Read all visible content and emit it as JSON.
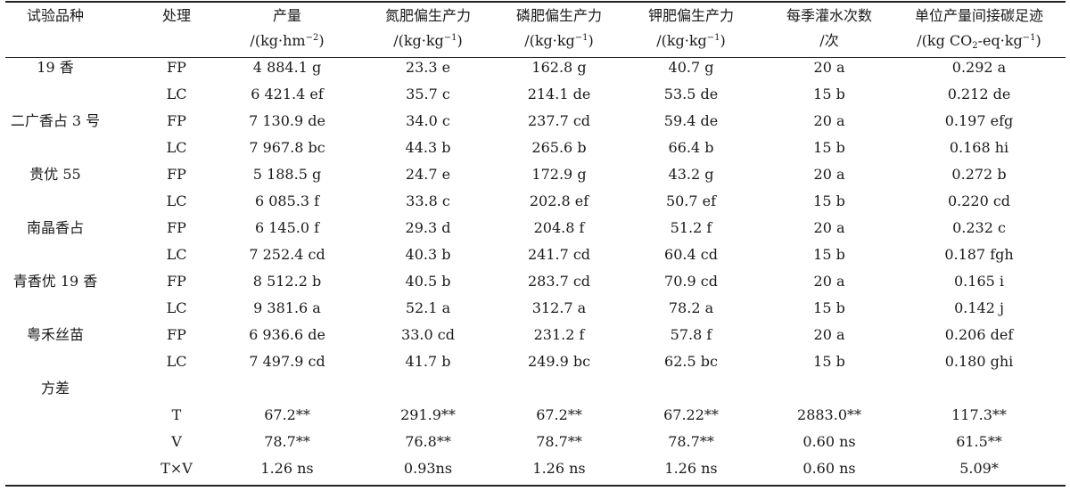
{
  "table": {
    "headers": [
      {
        "line1": "试验品种",
        "line2": ""
      },
      {
        "line1": "处理",
        "line2": ""
      },
      {
        "line1": "产量",
        "line2": "/(kg·hm−2)"
      },
      {
        "line1": "氮肥偏生产力",
        "line2": "/(kg·kg−1)"
      },
      {
        "line1": "磷肥偏生产力",
        "line2": "/(kg·kg−1)"
      },
      {
        "line1": "钾肥偏生产力",
        "line2": "/(kg·kg−1)"
      },
      {
        "line1": "每季灌水次数",
        "line2": "/次"
      },
      {
        "line1": "单位产量间接碳足迹",
        "line2": "/(kg CO2-eq·kg−1)"
      }
    ],
    "rows": [
      {
        "variety": "19 香",
        "treatment": "FP",
        "values": [
          "4 884.1 g",
          "23.3 e",
          "162.8 g",
          "40.7 g",
          "20 a",
          "0.292 a"
        ]
      },
      {
        "variety": "",
        "treatment": "LC",
        "values": [
          "6 421.4 ef",
          "35.7 c",
          "214.1 de",
          "53.5 de",
          "15 b",
          "0.212 de"
        ]
      },
      {
        "variety": "二广香占 3 号",
        "treatment": "FP",
        "values": [
          "7 130.9 de",
          "34.0 c",
          "237.7 cd",
          "59.4 de",
          "20 a",
          "0.197 efg"
        ]
      },
      {
        "variety": "",
        "treatment": "LC",
        "values": [
          "7 967.8 bc",
          "44.3 b",
          "265.6 b",
          "66.4 b",
          "15 b",
          "0.168 hi"
        ]
      },
      {
        "variety": "贵优 55",
        "treatment": "FP",
        "values": [
          "5 188.5 g",
          "24.7 e",
          "172.9 g",
          "43.2 g",
          "20 a",
          "0.272 b"
        ]
      },
      {
        "variety": "",
        "treatment": "LC",
        "values": [
          "6 085.3 f",
          "33.8 c",
          "202.8 ef",
          "50.7 ef",
          "15 b",
          "0.220 cd"
        ]
      },
      {
        "variety": "南晶香占",
        "treatment": "FP",
        "values": [
          "6 145.0 f",
          "29.3 d",
          "204.8 f",
          "51.2 f",
          "20 a",
          "0.232 c"
        ]
      },
      {
        "variety": "",
        "treatment": "LC",
        "values": [
          "7 252.4 cd",
          "40.3 b",
          "241.7 cd",
          "60.4 cd",
          "15 b",
          "0.187 fgh"
        ]
      },
      {
        "variety": "青香优 19 香",
        "treatment": "FP",
        "values": [
          "8 512.2 b",
          "40.5 b",
          "283.7 cd",
          "70.9 cd",
          "20 a",
          "0.165 i"
        ]
      },
      {
        "variety": "",
        "treatment": "LC",
        "values": [
          "9 381.6 a",
          "52.1 a",
          "312.7 a",
          "78.2 a",
          "15 b",
          "0.142 j"
        ]
      },
      {
        "variety": "粤禾丝苗",
        "treatment": "FP",
        "values": [
          "6 936.6 de",
          "33.0 cd",
          "231.2 f",
          "57.8 f",
          "20 a",
          "0.206 def"
        ]
      },
      {
        "variety": "",
        "treatment": "LC",
        "values": [
          "7 497.9 cd",
          "41.7 b",
          "249.9 bc",
          "62.5 bc",
          "15 b",
          "0.180 ghi"
        ]
      },
      {
        "variety": "方差",
        "treatment": "",
        "values": [
          "",
          "",
          "",
          "",
          "",
          ""
        ]
      },
      {
        "variety": "",
        "treatment": "T",
        "values": [
          "67.2**",
          "291.9**",
          "67.2**",
          "67.22**",
          "2883.0**",
          "117.3**"
        ]
      },
      {
        "variety": "",
        "treatment": "V",
        "values": [
          "78.7**",
          "76.8**",
          "78.7**",
          "78.7**",
          "0.60 ns",
          "61.5**"
        ]
      },
      {
        "variety": "",
        "treatment": "T×V",
        "values": [
          "1.26 ns",
          "0.93ns",
          "1.26 ns",
          "1.26 ns",
          "0.60 ns",
          "5.09*"
        ]
      }
    ]
  }
}
